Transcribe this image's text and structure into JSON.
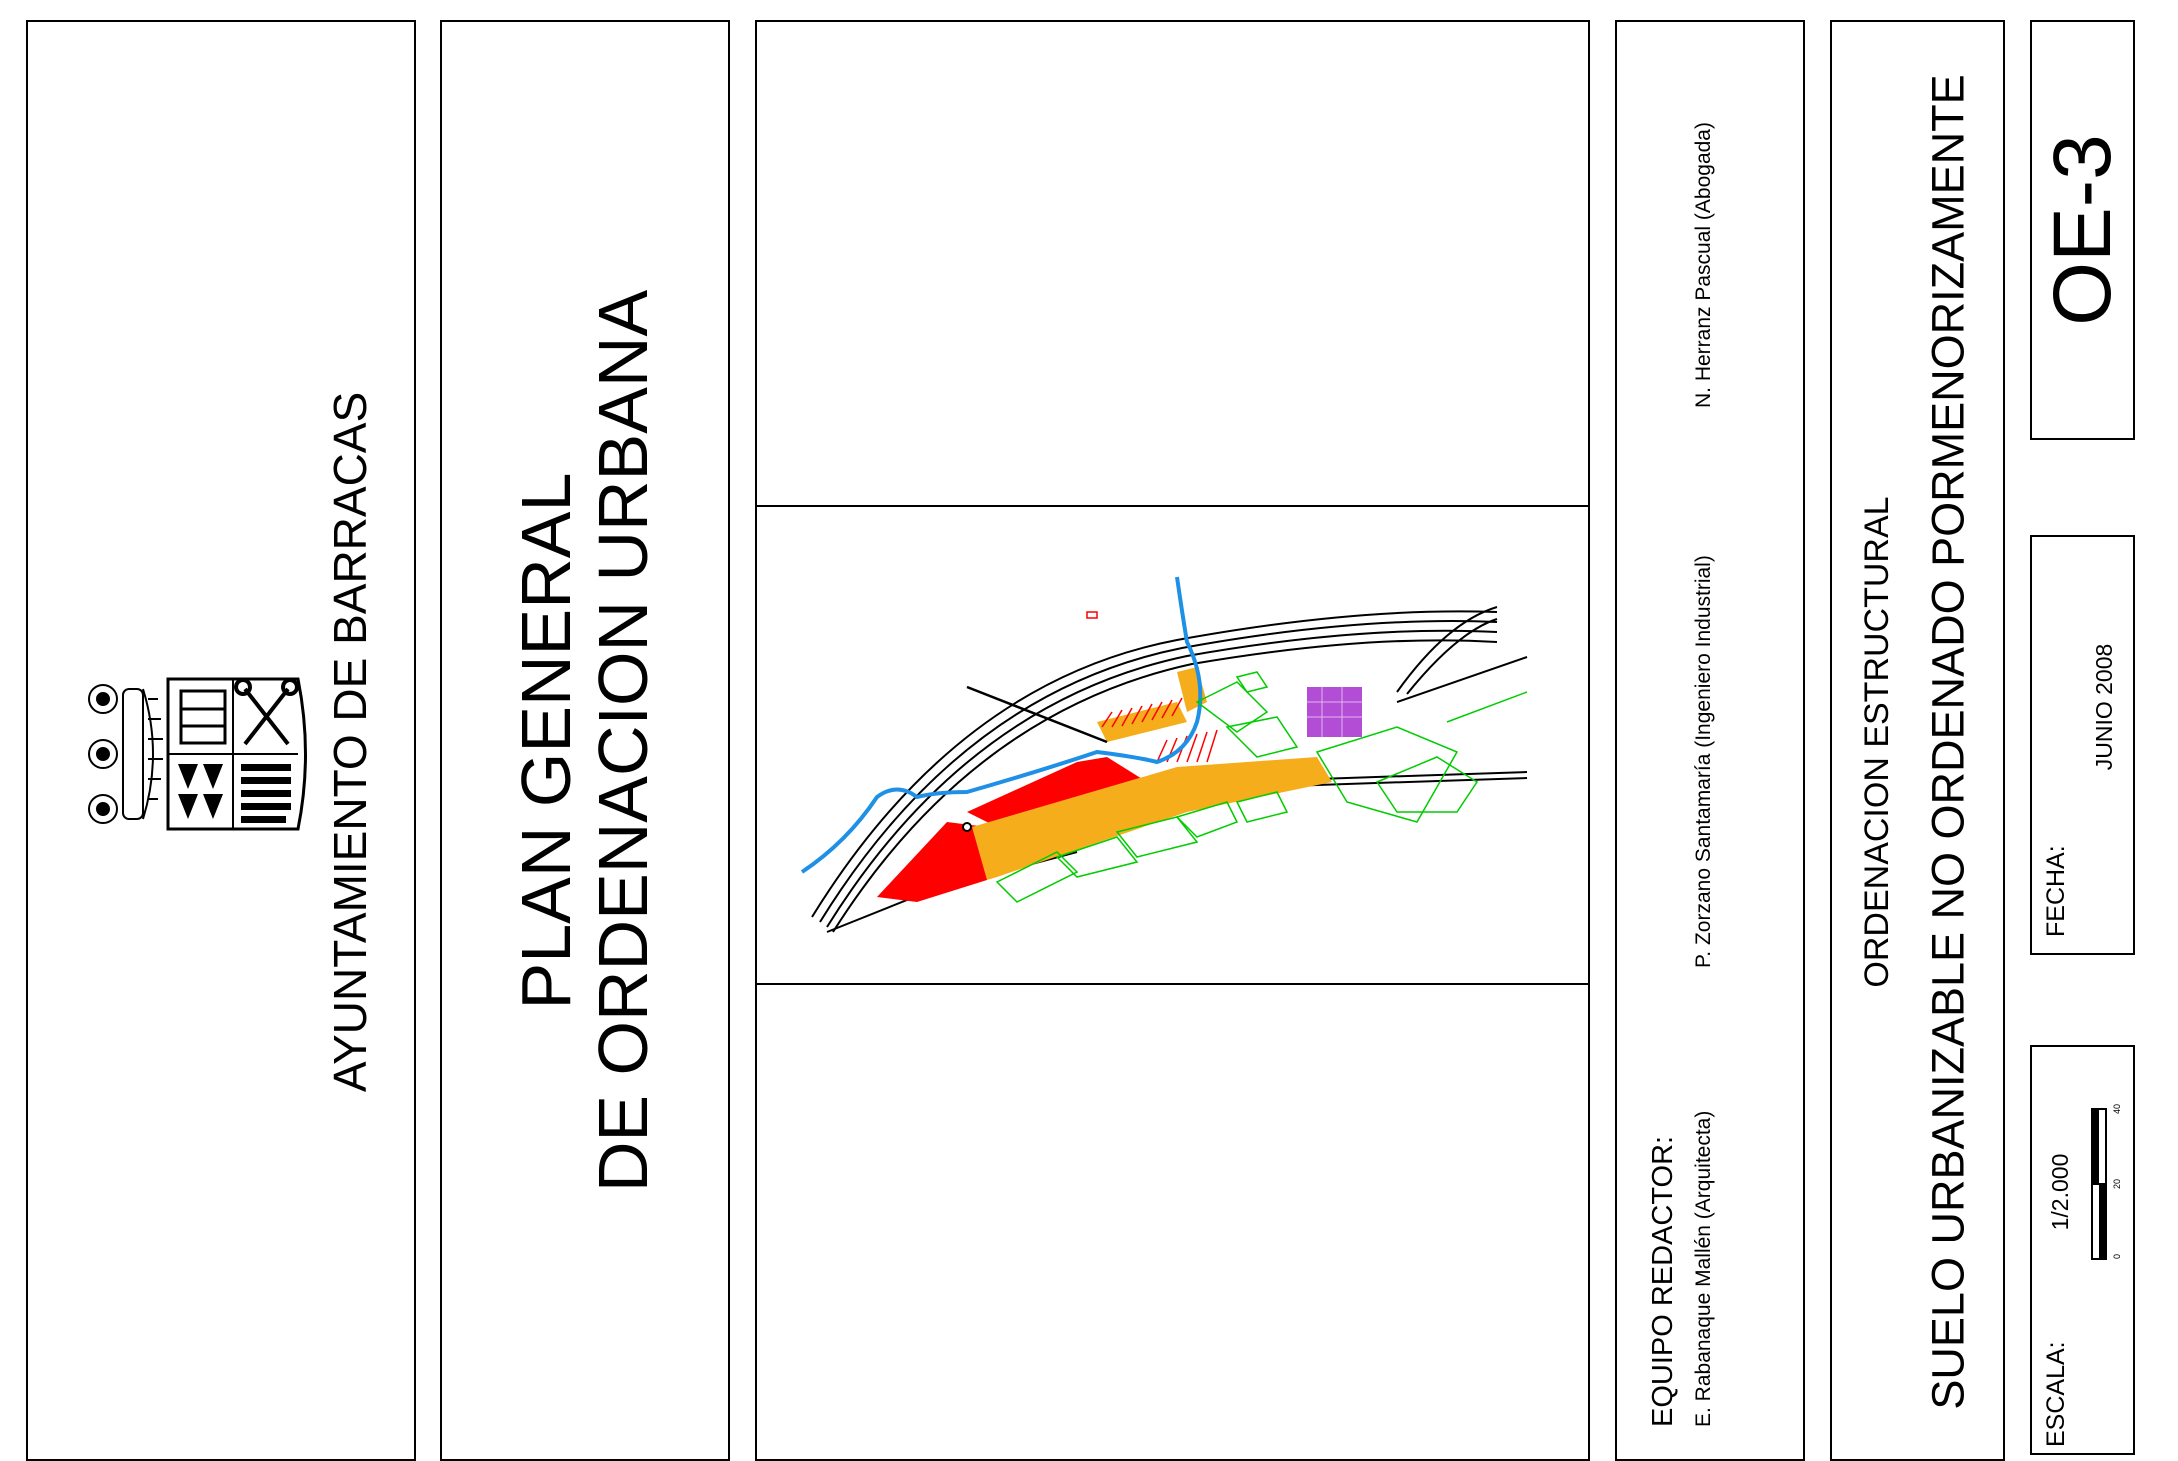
{
  "municipality": "AYUNTAMIENTO DE BARRACAS",
  "plan": {
    "line1": "PLAN GENERAL",
    "line2": "DE ORDENACION URBANA"
  },
  "team": {
    "heading": "EQUIPO REDACTOR:",
    "member1": "E. Rabanaque Mallén (Arquitecta)",
    "member2": "P. Zorzano Santamaría (Ingeniero Industrial)",
    "member3": "N. Herranz Pascual (Abogada)"
  },
  "sheet": {
    "category": "ORDENACION ESTRUCTURAL",
    "title": "SUELO URBANIZABLE NO ORDENADO PORMENORIZAMENTE",
    "code": "OE-3"
  },
  "date": {
    "label": "FECHA:",
    "value": "JUNIO 2008"
  },
  "scale": {
    "label": "ESCALA:",
    "value": "1/2.000",
    "ticks": [
      "0",
      "20",
      "40"
    ]
  },
  "icons": {
    "coat_of_arms": "coat-of-arms-icon"
  },
  "map_colors": {
    "urbanizable_red": "#ff0000",
    "urbanizable_orange": "#f5ad1c",
    "industrial_purple": "#b34dd6",
    "river_blue": "#1e90e6",
    "parcels_green": "#00cc00",
    "roads_black": "#000000"
  }
}
